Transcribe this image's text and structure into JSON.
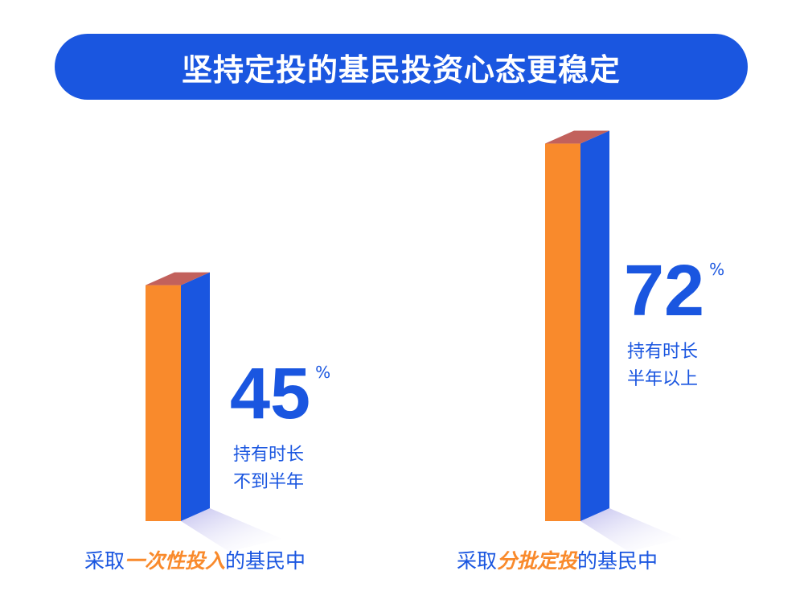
{
  "title": "坚持定投的基民投资心态更稳定",
  "colors": {
    "banner": "#1a56e0",
    "front": "#f98a2c",
    "side": "#1a56e0",
    "top": "#c2615c",
    "value_text": "#1a56e0",
    "caption_text": "#1a56e0",
    "highlight": "#f98a2c",
    "desc_text": "#1a56e0",
    "shadow": "#cfcdf0"
  },
  "chart_data": {
    "type": "bar",
    "categories": [
      "采取一次性投入的基民中",
      "采取分批定投的基民中"
    ],
    "values": [
      45,
      72
    ],
    "unit": "%",
    "ylim": [
      0,
      100
    ],
    "grid": false,
    "bars": [
      {
        "value": 45,
        "value_label": "45",
        "unit": "%",
        "desc_lines": [
          "持有时长",
          "不到半年"
        ],
        "caption_parts": [
          {
            "text": "采取",
            "highlight": false
          },
          {
            "text": "一次性投入",
            "highlight": true
          },
          {
            "text": "的基民中",
            "highlight": false
          }
        ]
      },
      {
        "value": 72,
        "value_label": "72",
        "unit": "%",
        "desc_lines": [
          "持有时长",
          "半年以上"
        ],
        "caption_parts": [
          {
            "text": "采取",
            "highlight": false
          },
          {
            "text": "分批定投",
            "highlight": true
          },
          {
            "text": "的基民中",
            "highlight": false
          }
        ]
      }
    ]
  }
}
